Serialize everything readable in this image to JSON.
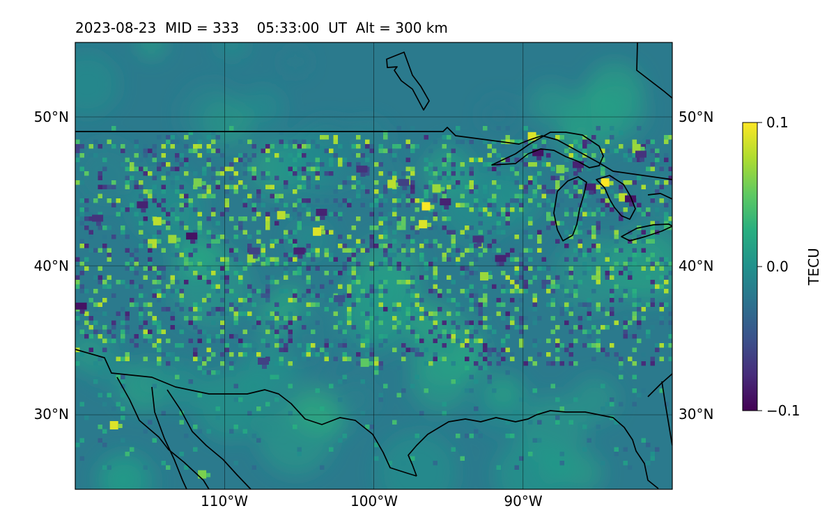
{
  "title": "2023-08-23  MID = 333    05:33:00  UT  Alt = 300 km",
  "map": {
    "lon_range": [
      -120,
      -80
    ],
    "lat_range": [
      25,
      55
    ],
    "lon_ticks": [
      {
        "value": -110,
        "label": "110°W"
      },
      {
        "value": -100,
        "label": "100°W"
      },
      {
        "value": -90,
        "label": "90°W"
      }
    ],
    "lat_ticks": [
      {
        "value": 50,
        "label": "50°N"
      },
      {
        "value": 40,
        "label": "40°N"
      },
      {
        "value": 30,
        "label": "30°N"
      }
    ],
    "gridlines": true,
    "coastlines": true,
    "borders": true,
    "field": "TEC perturbation"
  },
  "colorbar": {
    "label": "TECU",
    "min": -0.1,
    "max": 0.1,
    "colormap": "viridis",
    "ticks": [
      {
        "value": 0.1,
        "label": "0.1"
      },
      {
        "value": 0.0,
        "label": "0.0"
      },
      {
        "value": -0.1,
        "label": "−0.1"
      }
    ]
  },
  "hotspots": [
    {
      "lon": -117.4,
      "lat": 29.3,
      "value": 0.09
    },
    {
      "lon": -114.5,
      "lat": 43.0,
      "value": 0.08
    },
    {
      "lon": -113.5,
      "lat": 41.8,
      "value": 0.07
    },
    {
      "lon": -111.8,
      "lat": 45.6,
      "value": 0.06
    },
    {
      "lon": -108.2,
      "lat": 40.5,
      "value": 0.07
    },
    {
      "lon": -106.2,
      "lat": 43.4,
      "value": 0.08
    },
    {
      "lon": -103.8,
      "lat": 42.3,
      "value": 0.09
    },
    {
      "lon": -98.8,
      "lat": 45.5,
      "value": 0.08
    },
    {
      "lon": -96.5,
      "lat": 44.0,
      "value": 0.1
    },
    {
      "lon": -96.7,
      "lat": 42.8,
      "value": 0.09
    },
    {
      "lon": -95.8,
      "lat": 45.2,
      "value": 0.07
    },
    {
      "lon": -89.4,
      "lat": 48.7,
      "value": 0.09
    },
    {
      "lon": -87.5,
      "lat": 46.5,
      "value": 0.06
    },
    {
      "lon": -84.5,
      "lat": 45.6,
      "value": 0.1
    },
    {
      "lon": -83.3,
      "lat": 44.6,
      "value": 0.08
    },
    {
      "lon": -82.4,
      "lat": 47.9,
      "value": 0.07
    },
    {
      "lon": -111.5,
      "lat": 26.0,
      "value": 0.06
    },
    {
      "lon": -100.6,
      "lat": 33.5,
      "value": 0.05
    },
    {
      "lon": -92.6,
      "lat": 39.3,
      "value": 0.07
    }
  ],
  "lowspots": [
    {
      "lon": -112.2,
      "lat": 42.0,
      "value": -0.09
    },
    {
      "lon": -115.5,
      "lat": 44.1,
      "value": -0.08
    },
    {
      "lon": -118.5,
      "lat": 43.2,
      "value": -0.07
    },
    {
      "lon": -119.6,
      "lat": 37.3,
      "value": -0.09
    },
    {
      "lon": -108.0,
      "lat": 41.0,
      "value": -0.06
    },
    {
      "lon": -105.0,
      "lat": 41.0,
      "value": -0.08
    },
    {
      "lon": -103.5,
      "lat": 43.6,
      "value": -0.08
    },
    {
      "lon": -100.8,
      "lat": 46.5,
      "value": -0.07
    },
    {
      "lon": -98.0,
      "lat": 45.6,
      "value": -0.06
    },
    {
      "lon": -95.2,
      "lat": 44.3,
      "value": -0.08
    },
    {
      "lon": -93.0,
      "lat": 41.8,
      "value": -0.07
    },
    {
      "lon": -91.5,
      "lat": 40.5,
      "value": -0.08
    },
    {
      "lon": -89.0,
      "lat": 47.6,
      "value": -0.09
    },
    {
      "lon": -86.3,
      "lat": 46.8,
      "value": -0.08
    },
    {
      "lon": -85.5,
      "lat": 45.3,
      "value": -0.08
    },
    {
      "lon": -82.8,
      "lat": 44.5,
      "value": -0.09
    },
    {
      "lon": -82.1,
      "lat": 47.5,
      "value": -0.07
    },
    {
      "lon": -107.4,
      "lat": 33.6,
      "value": -0.06
    },
    {
      "lon": -102.3,
      "lat": 37.8,
      "value": -0.05
    }
  ]
}
